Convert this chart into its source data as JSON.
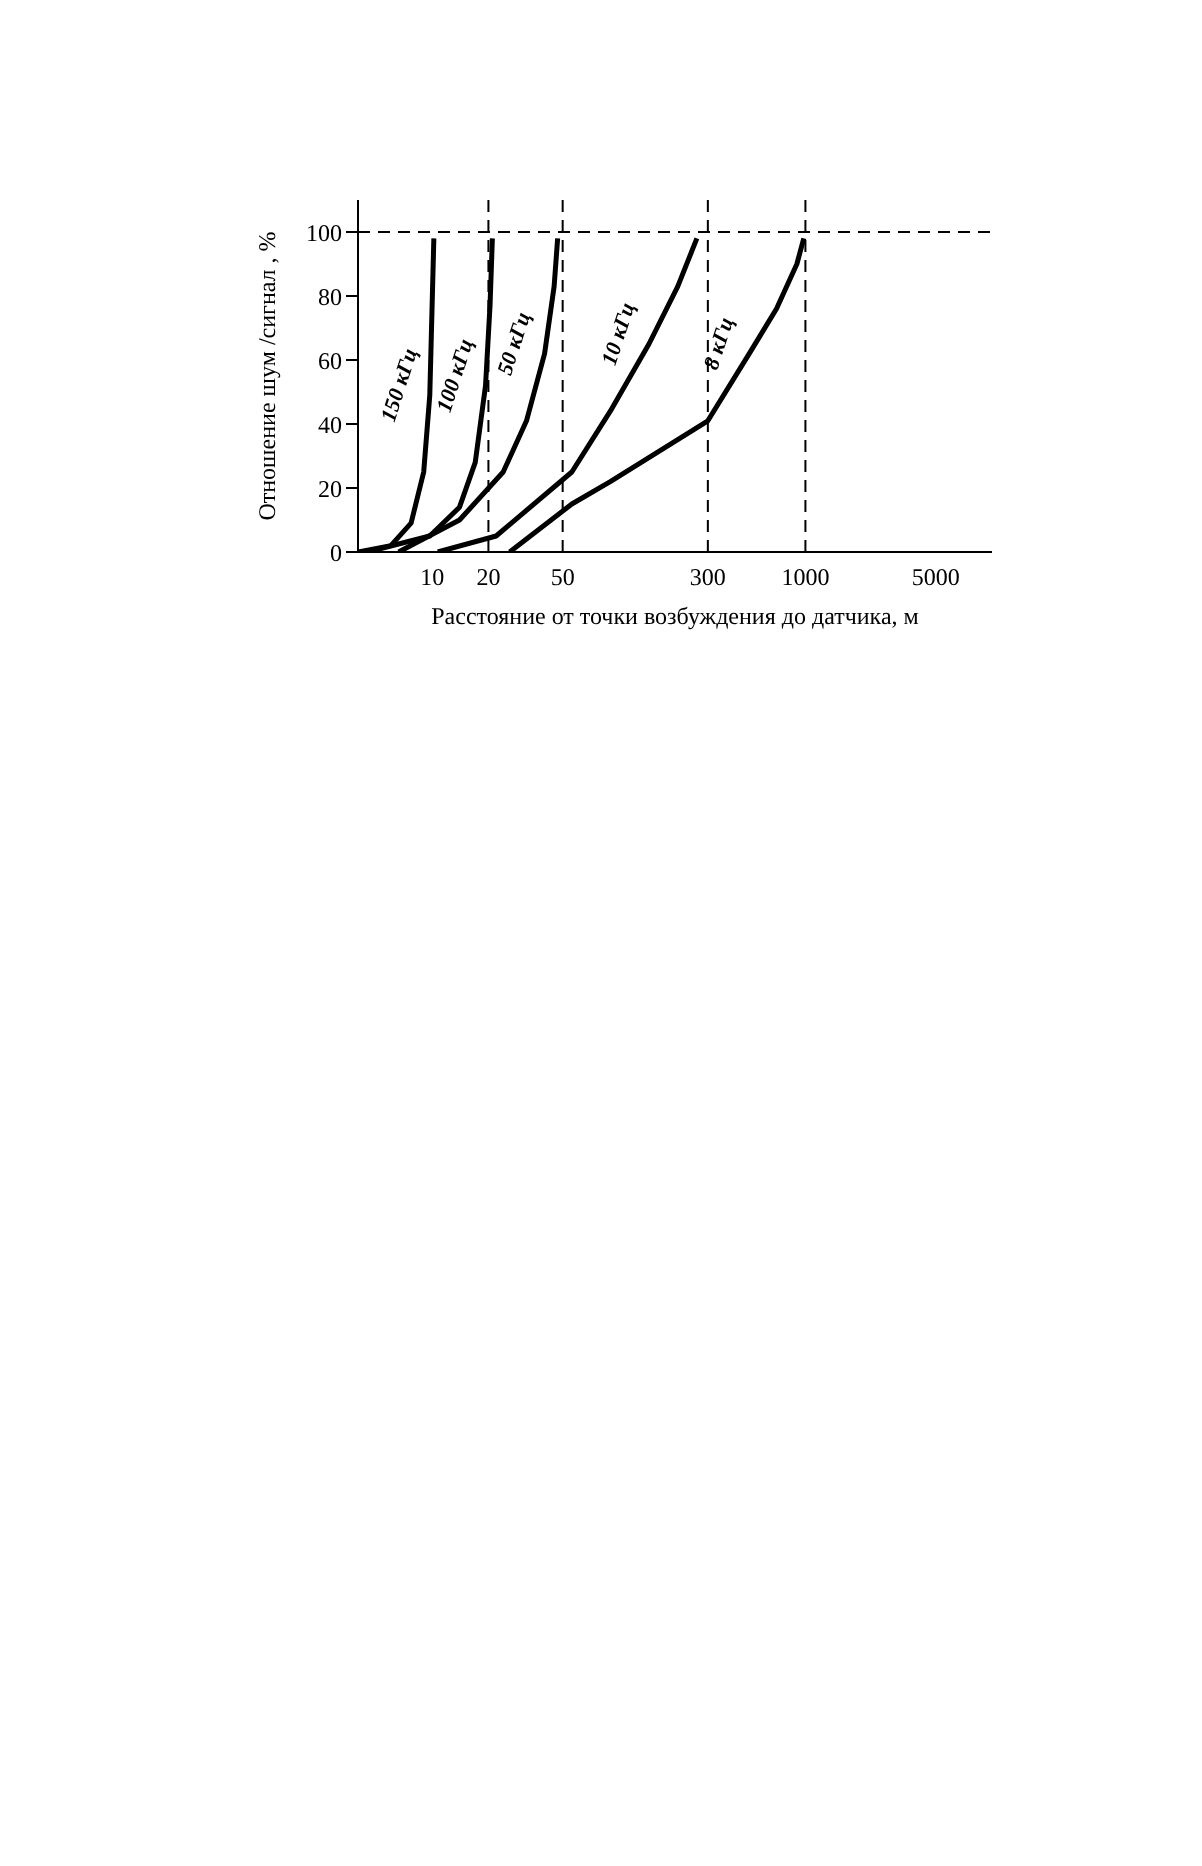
{
  "chart_data": {
    "type": "line",
    "xlabel": "Расстояние от точки возбуждения до датчика, м",
    "ylabel": "Отношение шум /сигнал , %",
    "log": "x",
    "xlim": [
      4,
      10000
    ],
    "xticks": [
      10,
      20,
      50,
      300,
      1000,
      5000
    ],
    "ylim": [
      0,
      110
    ],
    "yticks": [
      0,
      20,
      40,
      60,
      80,
      100
    ],
    "grid": false,
    "legend": false,
    "marker": "none",
    "line_style": "solid",
    "series": [
      {
        "name": "150 кГц",
        "color": "#000000",
        "x": [
          4,
          6,
          7.7,
          9,
          9.7,
          10.2
        ],
        "values": [
          0,
          2,
          9,
          25,
          49,
          98
        ]
      },
      {
        "name": "100 кГц",
        "color": "#000000",
        "x": [
          4.5,
          9.7,
          14,
          17,
          19.3,
          20.4,
          21
        ],
        "values": [
          0,
          5,
          14,
          28,
          52,
          77,
          98
        ]
      },
      {
        "name": "50 кГц",
        "color": "#000000",
        "x": [
          6.6,
          14,
          24,
          32,
          40,
          45,
          47
        ],
        "values": [
          0,
          10,
          25,
          41,
          62,
          83,
          98
        ]
      },
      {
        "name": "10 кГц",
        "color": "#000000",
        "x": [
          10.7,
          22,
          56,
          90,
          145,
          207,
          262
        ],
        "values": [
          0,
          5,
          25,
          44,
          65,
          83,
          98
        ]
      },
      {
        "name": "8 кГц",
        "color": "#000000",
        "x": [
          26,
          56,
          90,
          300,
          500,
          700,
          900,
          980
        ],
        "values": [
          0,
          15,
          22,
          41,
          62,
          76,
          90,
          98
        ]
      }
    ],
    "ref_lines": [
      {
        "axis": "y",
        "value": 100,
        "color": "#000000",
        "line_style": "dashed"
      },
      {
        "axis": "x",
        "value": 20,
        "color": "#000000",
        "line_style": "dashed"
      },
      {
        "axis": "x",
        "value": 50,
        "color": "#000000",
        "line_style": "dashed"
      },
      {
        "axis": "x",
        "value": 300,
        "color": "#000000",
        "line_style": "dashed"
      },
      {
        "axis": "x",
        "value": 1000,
        "color": "#000000",
        "line_style": "dashed"
      }
    ]
  }
}
